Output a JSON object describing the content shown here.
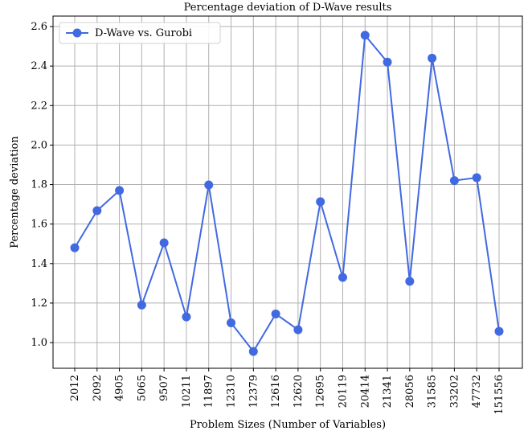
{
  "chart_data": {
    "type": "line",
    "title": "Percentage deviation of D-Wave results",
    "x_label": "Problem Sizes (Number of Variables)",
    "y_label": "Percentage deviation",
    "categories": [
      "2012",
      "2092",
      "4905",
      "5065",
      "9507",
      "10211",
      "11897",
      "12310",
      "12379",
      "12616",
      "12620",
      "12695",
      "20119",
      "20414",
      "21341",
      "28056",
      "31585",
      "33202",
      "47732",
      "151556"
    ],
    "series": [
      {
        "name": "D-Wave vs. Gurobi",
        "color": "#4169e1",
        "values": [
          1.48,
          1.668,
          1.77,
          1.19,
          1.505,
          1.13,
          1.798,
          1.1,
          0.955,
          1.145,
          1.065,
          1.713,
          1.33,
          2.556,
          2.42,
          1.31,
          2.44,
          1.82,
          1.835,
          1.057
        ]
      }
    ],
    "ylim": [
      0.87,
      2.653
    ],
    "yticks": [
      {
        "value": 1,
        "label": "1.0"
      },
      1.2,
      1.4,
      1.6,
      1.8,
      {
        "value": 2,
        "label": "2.0"
      },
      2.2,
      2.4,
      2.6
    ],
    "grid": true,
    "legend": "upper left"
  }
}
